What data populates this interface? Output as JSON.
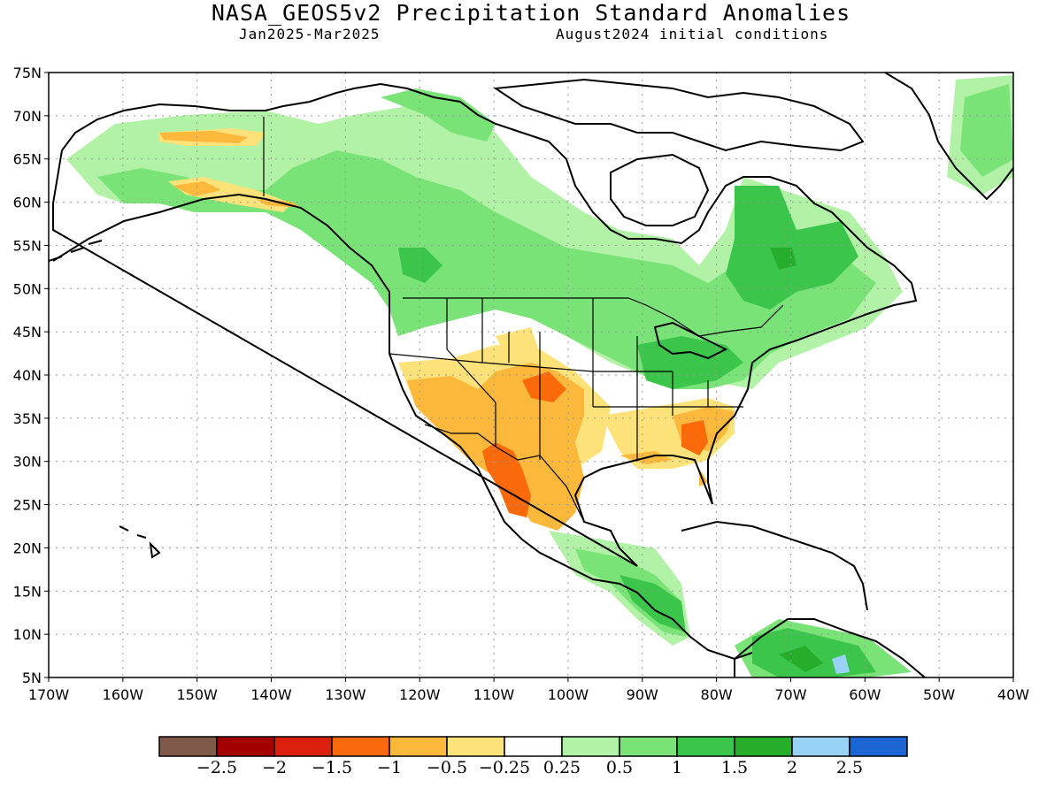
{
  "title": "NASA_GEOS5v2 Precipitation Standard Anomalies",
  "subtitle_left": "Jan2025-Mar2025",
  "subtitle_right": "August2024 initial conditions",
  "lat_labels": [
    "75N",
    "70N",
    "65N",
    "60N",
    "55N",
    "50N",
    "45N",
    "40N",
    "35N",
    "30N",
    "25N",
    "20N",
    "15N",
    "10N",
    "5N"
  ],
  "lon_labels": [
    "170W",
    "160W",
    "150W",
    "140W",
    "130W",
    "120W",
    "110W",
    "100W",
    "90W",
    "80W",
    "70W",
    "60W",
    "50W",
    "40W"
  ],
  "colorbar": {
    "colors": [
      "#7f5a4a",
      "#a50000",
      "#dd1f0d",
      "#fb6a0a",
      "#fbb83b",
      "#fde27a",
      "#ffffff",
      "#b2f2a6",
      "#79e378",
      "#3bc64b",
      "#27ad2c",
      "#98d3f5",
      "#1b65d4"
    ],
    "labels": [
      "-2.5",
      "-2",
      "-1.5",
      "-1",
      "-0.5",
      "-0.25",
      "0.25",
      "0.5",
      "1",
      "1.5",
      "2",
      "2.5"
    ]
  },
  "map_data": {
    "domain": {
      "lon_range": [
        -170,
        -40
      ],
      "lat_range": [
        5,
        75
      ]
    },
    "anomaly_regions": [
      {
        "region": "Southwest US / northern Mexico",
        "category": "-1 to -0.5",
        "color": "#fbb83b"
      },
      {
        "region": "Sierra Madre Occidental, Mexico",
        "category": "-1.5 to -1",
        "color": "#fb6a0a"
      },
      {
        "region": "Southern High Plains (Oklahoma/Kansas)",
        "category": "-1.5 to -1",
        "color": "#fb6a0a"
      },
      {
        "region": "Georgia / South Carolina",
        "category": "-1.5 to -1",
        "color": "#fb6a0a"
      },
      {
        "region": "Southeast US / Gulf coast",
        "category": "-0.5 to -0.25",
        "color": "#fde27a"
      },
      {
        "region": "Northern Alaska / Brooks Range",
        "category": "-1 to -0.5",
        "color": "#fbb83b"
      },
      {
        "region": "Canada / Pacific Northwest",
        "category": "0.5 to 1",
        "color": "#79e378"
      },
      {
        "region": "Great Lakes / Ohio Valley",
        "category": "1 to 1.5",
        "color": "#3bc64b"
      },
      {
        "region": "Quebec / Labrador",
        "category": "1 to 1.5",
        "color": "#3bc64b"
      },
      {
        "region": "Greenland",
        "category": "0.5 to 1",
        "color": "#79e378"
      },
      {
        "region": "Central America",
        "category": "1 to 1.5",
        "color": "#3bc64b"
      },
      {
        "region": "Northern South America",
        "category": "1.5 to 2",
        "color": "#27ad2c"
      }
    ]
  }
}
